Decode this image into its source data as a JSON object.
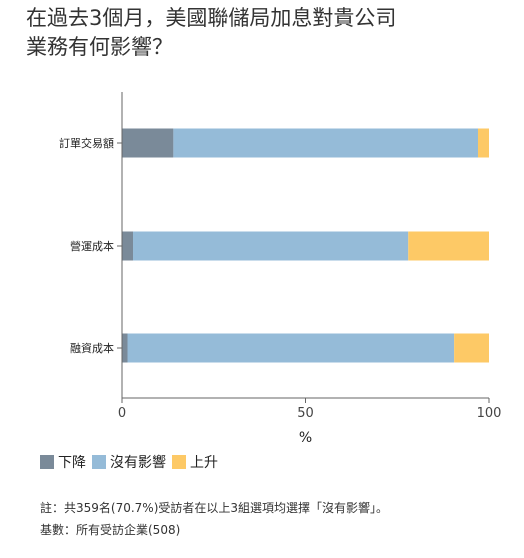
{
  "title_lines": [
    "在過去3個月，美國聯儲局加息對貴公司",
    "業務有何影響？"
  ],
  "colors": {
    "decrease": "#7a8a99",
    "no_impact": "#95bbd8",
    "increase": "#fdc966",
    "axis": "#666666"
  },
  "legend": {
    "decrease": "下降",
    "no_impact": "沒有影響",
    "increase": "上升"
  },
  "chart_data": {
    "type": "bar",
    "orientation": "horizontal",
    "stacked": true,
    "categories": [
      "訂單交易額",
      "營運成本",
      "融資成本"
    ],
    "series": [
      {
        "name": "下降",
        "values": [
          14,
          3,
          1.5
        ]
      },
      {
        "name": "沒有影響",
        "values": [
          83,
          75,
          89
        ]
      },
      {
        "name": "上升",
        "values": [
          3,
          22,
          9.5
        ]
      }
    ],
    "xlim": [
      0,
      100
    ],
    "xticks": [
      "0",
      "50",
      "100"
    ],
    "xlabel": "%",
    "ylabel": "",
    "grid": false,
    "legend_position": "bottom-left"
  },
  "notes": [
    "註：共359名(70.7%)受訪者在以上3組選項均選擇「沒有影響」。",
    "基數：所有受訪企業(508)"
  ]
}
